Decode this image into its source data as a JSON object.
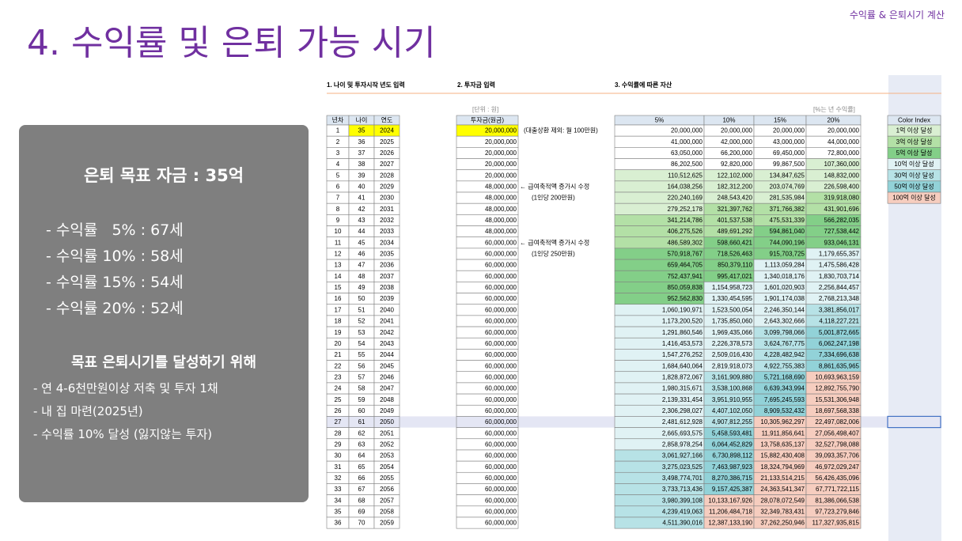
{
  "header": {
    "title": "4. 수익률 및 은퇴 가능 시기",
    "tag": "수익률 & 은퇴시기 계산"
  },
  "summary": {
    "goal": "은퇴 목표 자금 : 35억",
    "ages": [
      "- 수익률   5% : 67세",
      "- 수익률 10% : 58세",
      "- 수익률 15% : 54세",
      "- 수익률 20% : 52세"
    ],
    "subtitle": "목표 은퇴시기를 달성하기 위해",
    "actions": [
      "- 연 4-6천만원이상 저축 및 투자 1채",
      "- 내 집 마련(2025년)",
      "- 수익률 10% 달성 (잃지않는 투자)"
    ]
  },
  "sheet": {
    "sections": [
      "1. 나이 및 투자시작 년도 입력",
      "2. 투자금 입력",
      "3. 수익률에 따른 자산"
    ],
    "unit": "[단위 : 원]",
    "rate_note": "[%는 년 수익률]",
    "columns": [
      "년차",
      "나이",
      "연도",
      "투자금(원금)",
      "5%",
      "10%",
      "15%",
      "20%"
    ],
    "rows": [
      {
        "cells": [
          "1",
          "35",
          "2024",
          "20,000,000",
          "20,000,000",
          "20,000,000",
          "20,000,000",
          "20,000,000"
        ],
        "note": "(대출상환 제외: 월 100만원)"
      },
      {
        "cells": [
          "2",
          "36",
          "2025",
          "20,000,000",
          "41,000,000",
          "42,000,000",
          "43,000,000",
          "44,000,000"
        ]
      },
      {
        "cells": [
          "3",
          "37",
          "2026",
          "20,000,000",
          "63,050,000",
          "66,200,000",
          "69,450,000",
          "72,800,000"
        ]
      },
      {
        "cells": [
          "4",
          "38",
          "2027",
          "20,000,000",
          "86,202,500",
          "92,820,000",
          "99,867,500",
          "107,360,000"
        ]
      },
      {
        "cells": [
          "5",
          "39",
          "2028",
          "20,000,000",
          "110,512,625",
          "122,102,000",
          "134,847,625",
          "148,832,000"
        ]
      },
      {
        "cells": [
          "6",
          "40",
          "2029",
          "48,000,000",
          "164,038,256",
          "182,312,200",
          "203,074,769",
          "226,598,400"
        ],
        "note": "← 급여축적액 증가시 수정"
      },
      {
        "cells": [
          "7",
          "41",
          "2030",
          "48,000,000",
          "220,240,169",
          "248,543,420",
          "281,535,984",
          "319,918,080"
        ],
        "note": "(1인당 200만원)"
      },
      {
        "cells": [
          "8",
          "42",
          "2031",
          "48,000,000",
          "279,252,178",
          "321,397,762",
          "371,766,382",
          "431,901,696"
        ]
      },
      {
        "cells": [
          "9",
          "43",
          "2032",
          "48,000,000",
          "341,214,786",
          "401,537,538",
          "475,531,339",
          "566,282,035"
        ]
      },
      {
        "cells": [
          "10",
          "44",
          "2033",
          "48,000,000",
          "406,275,526",
          "489,691,292",
          "594,861,040",
          "727,538,442"
        ]
      },
      {
        "cells": [
          "11",
          "45",
          "2034",
          "60,000,000",
          "486,589,302",
          "598,660,421",
          "744,090,196",
          "933,046,131"
        ],
        "note": "← 급여축적액 증가시 수정"
      },
      {
        "cells": [
          "12",
          "46",
          "2035",
          "60,000,000",
          "570,918,767",
          "718,526,463",
          "915,703,725",
          "1,179,655,357"
        ],
        "note": "(1인당 250만원)"
      },
      {
        "cells": [
          "13",
          "47",
          "2036",
          "60,000,000",
          "659,464,705",
          "850,379,110",
          "1,113,059,284",
          "1,475,586,428"
        ]
      },
      {
        "cells": [
          "14",
          "48",
          "2037",
          "60,000,000",
          "752,437,941",
          "995,417,021",
          "1,340,018,176",
          "1,830,703,714"
        ]
      },
      {
        "cells": [
          "15",
          "49",
          "2038",
          "60,000,000",
          "850,059,838",
          "1,154,958,723",
          "1,601,020,903",
          "2,256,844,457"
        ]
      },
      {
        "cells": [
          "16",
          "50",
          "2039",
          "60,000,000",
          "952,562,830",
          "1,330,454,595",
          "1,901,174,038",
          "2,768,213,348"
        ]
      },
      {
        "cells": [
          "17",
          "51",
          "2040",
          "60,000,000",
          "1,060,190,971",
          "1,523,500,054",
          "2,246,350,144",
          "3,381,856,017"
        ]
      },
      {
        "cells": [
          "18",
          "52",
          "2041",
          "60,000,000",
          "1,173,200,520",
          "1,735,850,060",
          "2,643,302,666",
          "4,118,227,221"
        ]
      },
      {
        "cells": [
          "19",
          "53",
          "2042",
          "60,000,000",
          "1,291,860,546",
          "1,969,435,066",
          "3,099,798,066",
          "5,001,872,665"
        ]
      },
      {
        "cells": [
          "20",
          "54",
          "2043",
          "60,000,000",
          "1,416,453,573",
          "2,226,378,573",
          "3,624,767,775",
          "6,062,247,198"
        ]
      },
      {
        "cells": [
          "21",
          "55",
          "2044",
          "60,000,000",
          "1,547,276,252",
          "2,509,016,430",
          "4,228,482,942",
          "7,334,696,638"
        ]
      },
      {
        "cells": [
          "22",
          "56",
          "2045",
          "60,000,000",
          "1,684,640,064",
          "2,819,918,073",
          "4,922,755,383",
          "8,861,635,965"
        ]
      },
      {
        "cells": [
          "23",
          "57",
          "2046",
          "60,000,000",
          "1,828,872,067",
          "3,161,909,880",
          "5,721,168,690",
          "10,693,963,159"
        ]
      },
      {
        "cells": [
          "24",
          "58",
          "2047",
          "60,000,000",
          "1,980,315,671",
          "3,538,100,868",
          "6,639,343,994",
          "12,892,755,790"
        ]
      },
      {
        "cells": [
          "25",
          "59",
          "2048",
          "60,000,000",
          "2,139,331,454",
          "3,951,910,955",
          "7,695,245,593",
          "15,531,306,948"
        ]
      },
      {
        "cells": [
          "26",
          "60",
          "2049",
          "60,000,000",
          "2,306,298,027",
          "4,407,102,050",
          "8,909,532,432",
          "18,697,568,338"
        ]
      },
      {
        "cells": [
          "27",
          "61",
          "2050",
          "60,000,000",
          "2,481,612,928",
          "4,907,812,255",
          "10,305,962,297",
          "22,497,082,006"
        ]
      },
      {
        "cells": [
          "28",
          "62",
          "2051",
          "60,000,000",
          "2,665,693,575",
          "5,458,593,481",
          "11,911,856,641",
          "27,056,498,407"
        ]
      },
      {
        "cells": [
          "29",
          "63",
          "2052",
          "60,000,000",
          "2,858,978,254",
          "6,064,452,829",
          "13,758,635,137",
          "32,527,798,088"
        ]
      },
      {
        "cells": [
          "30",
          "64",
          "2053",
          "60,000,000",
          "3,061,927,166",
          "6,730,898,112",
          "15,882,430,408",
          "39,093,357,706"
        ]
      },
      {
        "cells": [
          "31",
          "65",
          "2054",
          "60,000,000",
          "3,275,023,525",
          "7,463,987,923",
          "18,324,794,969",
          "46,972,029,247"
        ]
      },
      {
        "cells": [
          "32",
          "66",
          "2055",
          "60,000,000",
          "3,498,774,701",
          "8,270,386,715",
          "21,133,514,215",
          "56,426,435,096"
        ]
      },
      {
        "cells": [
          "33",
          "67",
          "2056",
          "60,000,000",
          "3,733,713,436",
          "9,157,425,387",
          "24,363,541,347",
          "67,771,722,115"
        ]
      },
      {
        "cells": [
          "34",
          "68",
          "2057",
          "60,000,000",
          "3,980,399,108",
          "10,133,167,926",
          "28,078,072,549",
          "81,386,066,538"
        ]
      },
      {
        "cells": [
          "35",
          "69",
          "2058",
          "60,000,000",
          "4,239,419,063",
          "11,206,484,718",
          "32,349,783,431",
          "97,723,279,846"
        ]
      },
      {
        "cells": [
          "36",
          "70",
          "2059",
          "60,000,000",
          "4,511,390,016",
          "12,387,133,190",
          "37,262,250,946",
          "117,327,935,815"
        ]
      }
    ],
    "color_index": {
      "title": "Color Index",
      "items": [
        {
          "label": "1억 이상 달성",
          "value": 100000000,
          "color": "#d9efd2"
        },
        {
          "label": "3억 이상 달성",
          "value": 300000000,
          "color": "#b3e0a6"
        },
        {
          "label": "5억 이상 달성",
          "value": 500000000,
          "color": "#83cf88"
        },
        {
          "label": "10억 이상 달성",
          "value": 1000000000,
          "color": "#e0f2f4"
        },
        {
          "label": "30억 이상 달성",
          "value": 3000000000,
          "color": "#b7e2e6"
        },
        {
          "label": "50억 이상 달성",
          "value": 5000000000,
          "color": "#92d2d8"
        },
        {
          "label": "100억 이상 달성",
          "value": 10000000000,
          "color": "#f6cdbf"
        }
      ]
    }
  }
}
